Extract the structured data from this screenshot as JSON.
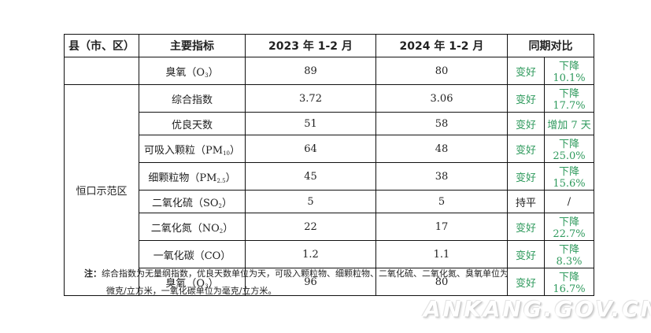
{
  "headers": {
    "county": "县（市、区）",
    "indicator": "主要指标",
    "year_2023": "2023 年 1-2 月",
    "year_2024": "2024 年 1-2 月",
    "compare": "同期对比"
  },
  "rows": [
    {
      "county": "",
      "indicator": "臭氧（O",
      "sub": "3",
      "close": "）",
      "y2023": "89",
      "y2024": "80",
      "trend": "变好",
      "change": "下降 10.1%"
    },
    {
      "county": "恒口示范区",
      "indicator": "综合指数",
      "sub": "",
      "close": "",
      "y2023": "3.72",
      "y2024": "3.06",
      "trend": "变好",
      "change": "下降 17.7%"
    },
    {
      "indicator": "优良天数",
      "sub": "",
      "close": "",
      "y2023": "51",
      "y2024": "58",
      "trend": "变好",
      "change": "增加 7 天"
    },
    {
      "indicator": "可吸入颗粒（PM",
      "sub": "10",
      "close": "）",
      "y2023": "64",
      "y2024": "48",
      "trend": "变好",
      "change": "下降 25.0%"
    },
    {
      "indicator": "细颗粒物（PM",
      "sub": "2.5",
      "close": "）",
      "y2023": "45",
      "y2024": "38",
      "trend": "变好",
      "change": "下降 15.6%"
    },
    {
      "indicator": "二氧化硫（SO",
      "sub": "2",
      "close": "）",
      "y2023": "5",
      "y2024": "5",
      "trend": "持平",
      "change": "/"
    },
    {
      "indicator": "二氧化氮（NO",
      "sub": "2",
      "close": "）",
      "y2023": "22",
      "y2024": "17",
      "trend": "变好",
      "change": "下降 22.7%"
    },
    {
      "indicator": "一氧化碳（CO）",
      "sub": "",
      "close": "",
      "y2023": "1.2",
      "y2024": "1.1",
      "trend": "变好",
      "change": "下降 8.3%"
    },
    {
      "indicator": "臭氧（O",
      "sub": "3",
      "close": "）",
      "y2023": "96",
      "y2024": "80",
      "trend": "变好",
      "change": "下降 16.7%"
    }
  ],
  "note": {
    "label": "注：",
    "line1": "综合指数为无量纲指数，优良天数单位为天，可吸入颗粒物、细颗粒物、二氧化硫、二氧化氮、臭氧单位为",
    "line2": "微克/立方米，一氧化碳单位为毫克/立方米。"
  },
  "watermark": "ANKANG.GOV.CN",
  "colors": {
    "improve": "#2f9a5d",
    "text": "#222222"
  }
}
